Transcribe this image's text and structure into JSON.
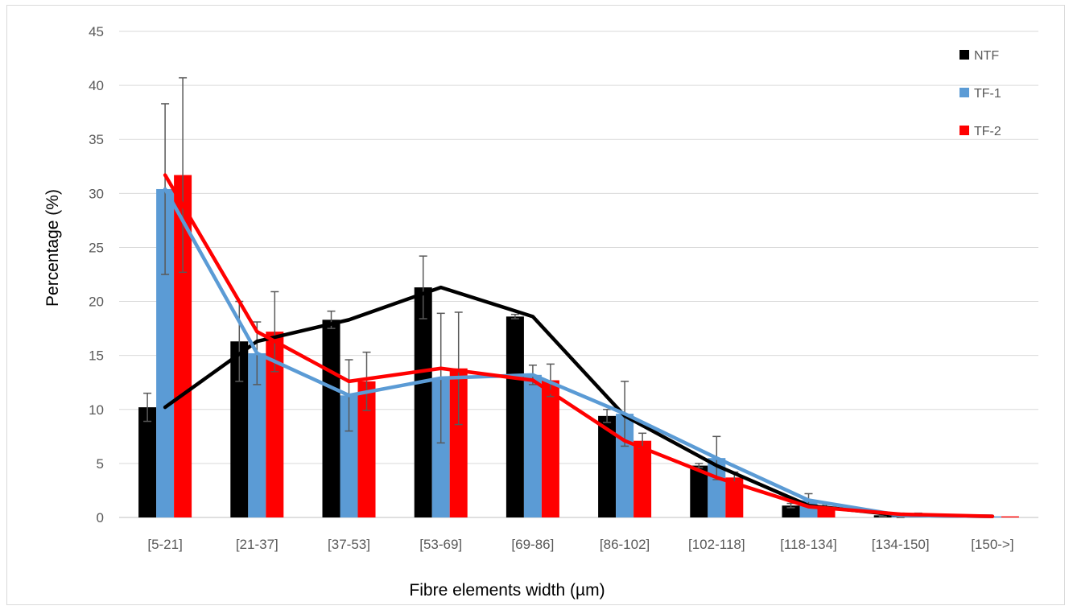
{
  "chart_data": {
    "type": "bar",
    "title": "",
    "xlabel": "Fibre elements width (µm)",
    "ylabel": "Percentage (%)",
    "ylim": [
      0,
      45
    ],
    "yticks": [
      "0",
      "5",
      "10",
      "15",
      "20",
      "25",
      "30",
      "35",
      "40",
      "45"
    ],
    "grid": true,
    "legend_position": "top-right",
    "categories": [
      "[5-21]",
      "[21-37]",
      "[37-53]",
      "[53-69]",
      "[69-86]",
      "[86-102]",
      "[102-118]",
      "[118-134]",
      "[134-150]",
      "[150->]"
    ],
    "series": [
      {
        "name": "NTF",
        "color": "#000000",
        "values": [
          10.2,
          16.3,
          18.3,
          21.3,
          18.6,
          9.4,
          4.8,
          1.1,
          0.2,
          0.1
        ],
        "error": [
          1.3,
          3.7,
          0.8,
          2.9,
          0.2,
          0.6,
          0.2,
          0.2,
          0.1,
          0.0
        ],
        "trend": [
          10.2,
          16.3,
          18.3,
          21.3,
          18.6,
          9.4,
          4.8,
          1.1,
          0.2,
          0.1
        ]
      },
      {
        "name": "TF-1",
        "color": "#5b9bd5",
        "values": [
          30.4,
          15.2,
          11.3,
          12.9,
          13.2,
          9.6,
          5.5,
          1.6,
          0.2,
          0.1
        ],
        "error": [
          7.9,
          2.9,
          3.3,
          6.0,
          0.9,
          3.0,
          2.0,
          0.6,
          0.2,
          0.0
        ],
        "trend": [
          30.4,
          15.2,
          11.3,
          12.9,
          13.2,
          9.6,
          5.5,
          1.6,
          0.2,
          0.1
        ]
      },
      {
        "name": "TF-2",
        "color": "#ff0000",
        "values": [
          31.7,
          17.2,
          12.6,
          13.8,
          12.7,
          7.1,
          3.7,
          1.0,
          0.3,
          0.1
        ],
        "error": [
          9.0,
          3.7,
          2.7,
          5.2,
          1.5,
          0.7,
          0.5,
          0.2,
          0.1,
          0.0
        ],
        "trend": [
          31.7,
          17.2,
          12.6,
          13.8,
          12.7,
          7.1,
          3.7,
          1.0,
          0.3,
          0.1
        ]
      }
    ]
  }
}
